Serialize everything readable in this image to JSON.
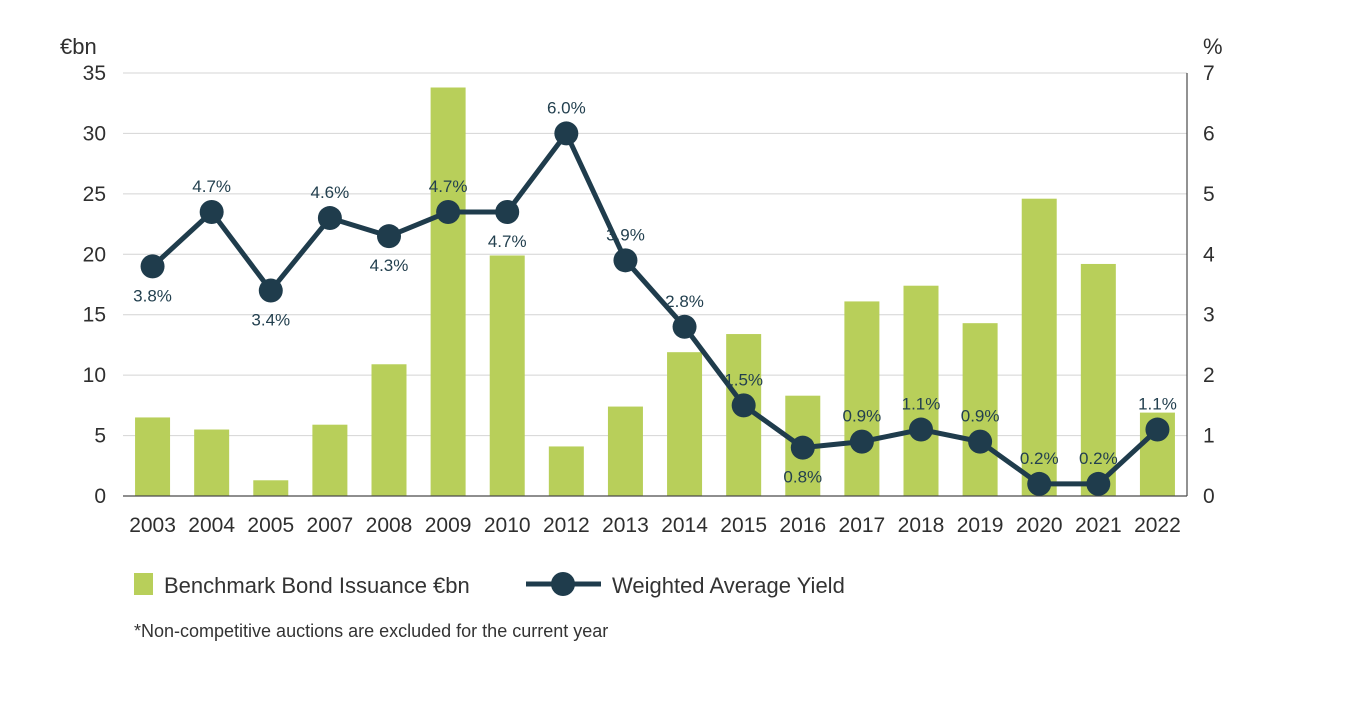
{
  "chart_data": {
    "type": "bar",
    "categories": [
      "2003",
      "2004",
      "2005",
      "2007",
      "2008",
      "2009",
      "2010",
      "2012",
      "2013",
      "2014",
      "2015",
      "2016",
      "2017",
      "2018",
      "2019",
      "2020",
      "2021",
      "2022"
    ],
    "series": [
      {
        "name": "Benchmark Bond Issuance €bn",
        "type": "bar",
        "axis": "left",
        "color": "#b8cf5a",
        "values": [
          6.5,
          5.5,
          1.3,
          5.9,
          10.9,
          33.8,
          19.9,
          4.1,
          7.4,
          11.9,
          13.4,
          8.3,
          16.1,
          17.4,
          14.3,
          24.6,
          19.2,
          6.9
        ]
      },
      {
        "name": "Weighted Average Yield",
        "type": "line",
        "axis": "right",
        "color": "#1f3c4c",
        "values": [
          3.8,
          4.7,
          3.4,
          4.6,
          4.3,
          4.7,
          4.7,
          6.0,
          3.9,
          2.8,
          1.5,
          0.8,
          0.9,
          1.1,
          0.9,
          0.2,
          0.2,
          1.1
        ],
        "labels": [
          "3.8%",
          "4.7%",
          "3.4%",
          "4.6%",
          "4.3%",
          "4.7%",
          "4.7%",
          "6.0%",
          "3.9%",
          "2.8%",
          "1.5%",
          "0.8%",
          "0.9%",
          "1.1%",
          "0.9%",
          "0.2%",
          "0.2%",
          "1.1%"
        ]
      }
    ],
    "y_left": {
      "unit": "€bn",
      "ylim": [
        0,
        35
      ],
      "ticks": [
        "0",
        "5",
        "10",
        "15",
        "20",
        "25",
        "30",
        "35"
      ]
    },
    "y_right": {
      "unit": "%",
      "ylim": [
        0,
        7
      ],
      "ticks": [
        "0",
        "1",
        "2",
        "3",
        "4",
        "5",
        "6",
        "7"
      ]
    },
    "grid": true,
    "legend_position": "bottom-left",
    "footnote": "*Non-competitive auctions are excluded for the current year"
  }
}
